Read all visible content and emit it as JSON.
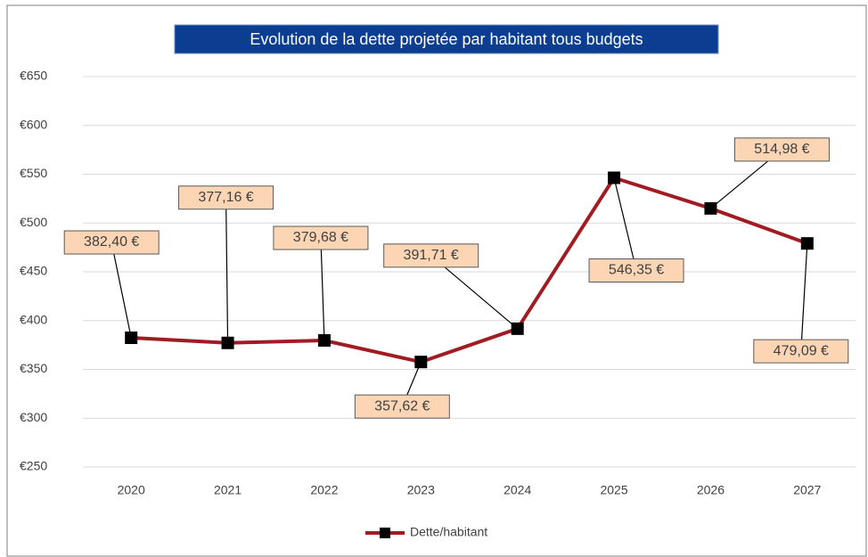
{
  "chart_data": {
    "type": "line",
    "title": "Evolution de la dette projetée par habitant tous budgets",
    "categories": [
      "2020",
      "2021",
      "2022",
      "2023",
      "2024",
      "2025",
      "2026",
      "2027"
    ],
    "series": [
      {
        "name": "Dette/habitant",
        "color": "#a01c22",
        "values": [
          382.4,
          377.16,
          379.68,
          357.62,
          391.71,
          546.35,
          514.98,
          479.09
        ],
        "value_labels": [
          "382,40 €",
          "377,16 €",
          "379,68 €",
          "357,62 €",
          "391,71 €",
          "546,35 €",
          "514,98 €",
          "479,09 €"
        ]
      }
    ],
    "ylim": [
      250,
      650
    ],
    "yticks": [
      {
        "value": 250,
        "label": "€250"
      },
      {
        "value": 300,
        "label": "€300"
      },
      {
        "value": 350,
        "label": "€350"
      },
      {
        "value": 400,
        "label": "€400"
      },
      {
        "value": 450,
        "label": "€450"
      },
      {
        "value": 500,
        "label": "€500"
      },
      {
        "value": 550,
        "label": "€550"
      },
      {
        "value": 600,
        "label": "€600"
      },
      {
        "value": 650,
        "label": "€650"
      }
    ],
    "grid": true,
    "legend": "bottom"
  }
}
